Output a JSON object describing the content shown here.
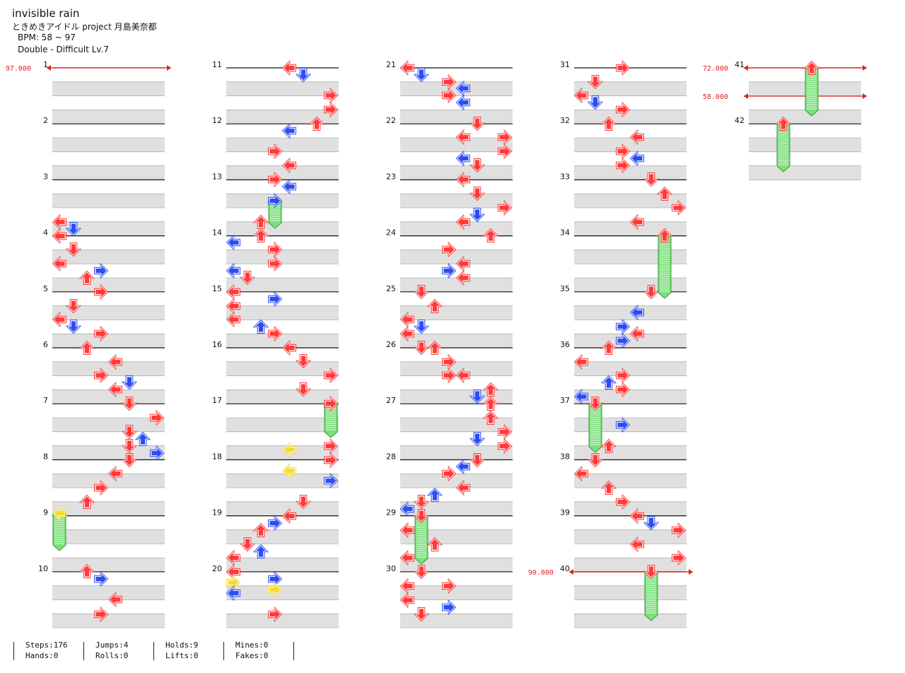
{
  "header": {
    "title": "invisible rain",
    "artist": "ときめきアイドル project 月島美奈都",
    "bpm": "BPM: 58 ~ 97",
    "difficulty": "Double - Difficult  Lv.7"
  },
  "colors": {
    "red": "#ff3a3a",
    "blue": "#2e4df0",
    "yellow": "#f2dd33",
    "hold": "#7ae07a",
    "bpm_line": "#e02020"
  },
  "bpm_changes": [
    {
      "measure": 1,
      "label": "97.000"
    },
    {
      "measure": 41,
      "label": "72.000"
    },
    {
      "measure": 41.5,
      "label": "58.000"
    },
    {
      "measure": 40,
      "label": "90.000"
    }
  ],
  "notes": [
    [
      1,
      0,
      "L",
      "r"
    ],
    [
      1,
      0.125,
      "D",
      "b"
    ],
    [
      1,
      0.5,
      "R",
      "r"
    ],
    [
      1,
      0.75,
      "R",
      "r"
    ],
    [
      1,
      1,
      "U",
      "r"
    ],
    [
      1,
      1.125,
      "L",
      "b"
    ],
    [
      1,
      1.5,
      "R",
      "r"
    ],
    [
      1,
      1.75,
      "L",
      "r"
    ],
    [
      1,
      2,
      "R",
      "r"
    ],
    [
      1,
      2.125,
      "L",
      "b"
    ],
    [
      1,
      2.25,
      "R",
      "r"
    ],
    [
      1,
      2.375,
      "R",
      "b"
    ],
    [
      1,
      2.75,
      "L",
      "b"
    ],
    [
      1,
      3,
      "L",
      "r"
    ],
    [
      1,
      3.25,
      "D",
      "r"
    ],
    [
      1,
      3.5,
      "L",
      "b"
    ],
    [
      1,
      3.75,
      "U",
      "r"
    ],
    [
      1,
      4,
      "R",
      "r"
    ],
    [
      1,
      4.125,
      "U",
      "r"
    ],
    [
      1,
      4.25,
      "L",
      "b"
    ],
    [
      1,
      4.5,
      "D",
      "b"
    ],
    [
      1,
      4.625,
      "U",
      "r"
    ],
    [
      1,
      4.75,
      "U",
      "r"
    ],
    [
      1,
      5,
      "R",
      "r"
    ],
    [
      1,
      5.25,
      "R",
      "r"
    ],
    [
      1,
      5.375,
      "L",
      "r"
    ],
    [
      1,
      5.5,
      "R",
      "r"
    ],
    [
      1,
      5.75,
      "R",
      "r"
    ],
    [
      1,
      5.875,
      "L",
      "r"
    ],
    [
      1,
      6,
      "D",
      "r"
    ],
    [
      1,
      6.25,
      "R",
      "b"
    ],
    [
      1,
      6.5,
      "R",
      "r"
    ],
    [
      1,
      6.625,
      "L",
      "b"
    ],
    [
      1,
      6.75,
      "D",
      "r"
    ],
    [
      1,
      7,
      "L",
      "r"
    ],
    [
      1,
      7.125,
      "D",
      "b"
    ],
    [
      1,
      7.25,
      "R",
      "r"
    ],
    [
      1,
      7.5,
      "D",
      "r"
    ],
    [
      1,
      7.75,
      "L",
      "r"
    ],
    [
      1,
      7.875,
      "D",
      "r"
    ],
    [
      1,
      8,
      "R",
      "r"
    ],
    [
      1,
      8.25,
      "U",
      "r"
    ],
    [
      1,
      8.5,
      "L",
      "r"
    ],
    [
      1,
      8.75,
      "D",
      "b"
    ],
    [
      1,
      9,
      "R",
      "r"
    ],
    [
      1,
      9.25,
      "D",
      "r"
    ],
    [
      1,
      9.5,
      "U",
      "r"
    ],
    [
      1,
      9.625,
      "R",
      "r"
    ],
    [
      1,
      9.75,
      "R",
      "r"
    ]
  ],
  "stats": {
    "steps": "Steps:176",
    "hands": "Hands:0",
    "jumps": "Jumps:4",
    "rolls": "Rolls:0",
    "holds": "Holds:9",
    "lifts": "Lifts:0",
    "mines": "Mines:0",
    "fakes": "Fakes:0"
  }
}
